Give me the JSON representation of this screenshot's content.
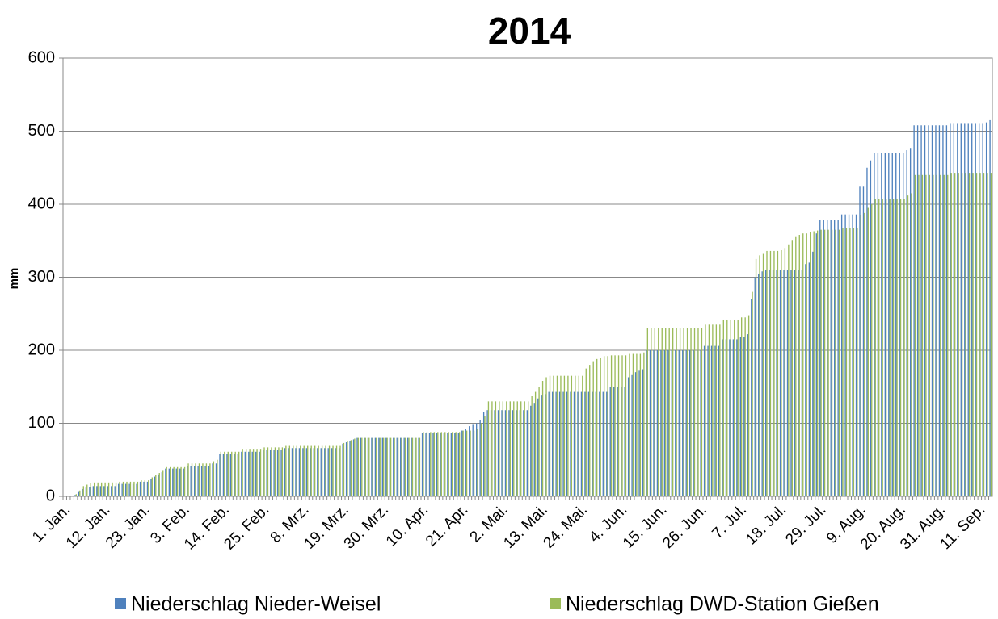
{
  "chart_data": {
    "type": "bar",
    "title": "2014",
    "y_label": "mm",
    "categories": [
      "1. Jan.",
      null,
      null,
      null,
      null,
      null,
      null,
      null,
      null,
      null,
      null,
      "12. Jan.",
      null,
      null,
      null,
      null,
      null,
      null,
      null,
      null,
      null,
      null,
      "23. Jan.",
      null,
      null,
      null,
      null,
      null,
      null,
      null,
      null,
      null,
      null,
      "3. Feb.",
      null,
      null,
      null,
      null,
      null,
      null,
      null,
      null,
      null,
      null,
      "14. Feb.",
      null,
      null,
      null,
      null,
      null,
      null,
      null,
      null,
      null,
      null,
      "25. Feb.",
      null,
      null,
      null,
      null,
      null,
      null,
      null,
      null,
      null,
      null,
      "8. Mrz.",
      null,
      null,
      null,
      null,
      null,
      null,
      null,
      null,
      null,
      null,
      "19. Mrz.",
      null,
      null,
      null,
      null,
      null,
      null,
      null,
      null,
      null,
      null,
      "30. Mrz.",
      null,
      null,
      null,
      null,
      null,
      null,
      null,
      null,
      null,
      null,
      "10. Apr.",
      null,
      null,
      null,
      null,
      null,
      null,
      null,
      null,
      null,
      null,
      "21. Apr.",
      null,
      null,
      null,
      null,
      null,
      null,
      null,
      null,
      null,
      null,
      "2. Mai.",
      null,
      null,
      null,
      null,
      null,
      null,
      null,
      null,
      null,
      null,
      "13. Mai.",
      null,
      null,
      null,
      null,
      null,
      null,
      null,
      null,
      null,
      null,
      "24. Mai.",
      null,
      null,
      null,
      null,
      null,
      null,
      null,
      null,
      null,
      null,
      "4. Jun.",
      null,
      null,
      null,
      null,
      null,
      null,
      null,
      null,
      null,
      null,
      "15. Jun.",
      null,
      null,
      null,
      null,
      null,
      null,
      null,
      null,
      null,
      null,
      "26. Jun.",
      null,
      null,
      null,
      null,
      null,
      null,
      null,
      null,
      null,
      null,
      "7. Jul.",
      null,
      null,
      null,
      null,
      null,
      null,
      null,
      null,
      null,
      null,
      "18. Jul.",
      null,
      null,
      null,
      null,
      null,
      null,
      null,
      null,
      null,
      null,
      "29. Jul.",
      null,
      null,
      null,
      null,
      null,
      null,
      null,
      null,
      null,
      null,
      "9. Aug.",
      null,
      null,
      null,
      null,
      null,
      null,
      null,
      null,
      null,
      null,
      "20. Aug.",
      null,
      null,
      null,
      null,
      null,
      null,
      null,
      null,
      null,
      null,
      "31. Aug.",
      null,
      null,
      null,
      null,
      null,
      null,
      null,
      null,
      null,
      null,
      "11. Sep.",
      null,
      null,
      null
    ],
    "series": [
      {
        "name": "Niederschlag Nieder-Weisel",
        "color": "#4f81bd",
        "values": [
          0,
          0,
          0,
          2,
          6,
          10,
          12,
          13,
          14,
          14,
          14,
          14,
          14,
          14,
          14,
          17,
          17,
          17,
          17,
          17,
          17,
          20,
          20,
          20,
          24,
          27,
          30,
          33,
          38,
          38,
          38,
          38,
          38,
          38,
          42,
          42,
          42,
          42,
          42,
          42,
          42,
          45,
          45,
          58,
          58,
          58,
          58,
          58,
          58,
          61,
          61,
          61,
          61,
          61,
          61,
          64,
          64,
          64,
          64,
          64,
          64,
          66,
          66,
          66,
          66,
          66,
          66,
          66,
          66,
          66,
          66,
          66,
          66,
          66,
          66,
          66,
          66,
          72,
          74,
          76,
          78,
          80,
          80,
          80,
          80,
          80,
          80,
          80,
          80,
          80,
          80,
          80,
          80,
          80,
          80,
          80,
          80,
          80,
          80,
          87,
          87,
          87,
          87,
          87,
          87,
          87,
          87,
          87,
          87,
          87,
          90,
          92,
          96,
          99,
          100,
          104,
          116,
          118,
          118,
          118,
          118,
          118,
          118,
          118,
          118,
          118,
          118,
          118,
          118,
          124,
          128,
          134,
          138,
          140,
          143,
          143,
          143,
          143,
          143,
          143,
          143,
          143,
          143,
          143,
          143,
          143,
          143,
          143,
          143,
          143,
          143,
          150,
          150,
          150,
          150,
          150,
          163,
          166,
          170,
          172,
          174,
          200,
          200,
          200,
          200,
          200,
          200,
          200,
          200,
          200,
          200,
          200,
          200,
          200,
          200,
          200,
          200,
          206,
          206,
          206,
          206,
          206,
          215,
          215,
          215,
          215,
          215,
          218,
          218,
          222,
          270,
          300,
          305,
          308,
          310,
          310,
          310,
          310,
          310,
          310,
          310,
          310,
          310,
          310,
          310,
          318,
          320,
          335,
          360,
          378,
          378,
          378,
          378,
          378,
          378,
          386,
          386,
          386,
          386,
          386,
          424,
          424,
          450,
          460,
          470,
          470,
          470,
          470,
          470,
          470,
          470,
          470,
          470,
          474,
          476,
          508,
          508,
          508,
          508,
          508,
          508,
          508,
          508,
          508,
          508,
          510,
          510,
          510,
          510,
          510,
          510,
          510,
          510,
          510,
          510,
          512,
          515
        ]
      },
      {
        "name": "Niederschlag DWD-Station Gießen",
        "color": "#9bbb59",
        "values": [
          0,
          0,
          0,
          3,
          8,
          14,
          16,
          18,
          19,
          19,
          19,
          19,
          19,
          19,
          19,
          20,
          20,
          20,
          20,
          20,
          20,
          22,
          22,
          22,
          26,
          29,
          32,
          36,
          40,
          40,
          40,
          40,
          40,
          40,
          45,
          45,
          45,
          45,
          45,
          45,
          45,
          48,
          50,
          61,
          61,
          61,
          61,
          61,
          61,
          65,
          65,
          65,
          65,
          65,
          65,
          67,
          67,
          67,
          67,
          67,
          67,
          69,
          69,
          69,
          69,
          69,
          69,
          69,
          69,
          69,
          69,
          69,
          69,
          69,
          69,
          69,
          69,
          73,
          75,
          77,
          79,
          80,
          80,
          80,
          80,
          80,
          80,
          80,
          80,
          80,
          80,
          80,
          80,
          80,
          80,
          80,
          80,
          80,
          80,
          88,
          88,
          88,
          88,
          88,
          88,
          88,
          88,
          88,
          88,
          88,
          90,
          90,
          90,
          90,
          92,
          100,
          110,
          130,
          130,
          130,
          130,
          130,
          130,
          130,
          130,
          130,
          130,
          130,
          130,
          137,
          143,
          150,
          158,
          163,
          165,
          165,
          165,
          165,
          165,
          165,
          165,
          165,
          165,
          165,
          175,
          180,
          185,
          188,
          190,
          192,
          192,
          193,
          193,
          193,
          193,
          193,
          195,
          195,
          195,
          195,
          197,
          230,
          230,
          230,
          230,
          230,
          230,
          230,
          230,
          230,
          230,
          230,
          230,
          230,
          230,
          230,
          230,
          235,
          235,
          235,
          235,
          235,
          242,
          242,
          242,
          242,
          242,
          245,
          245,
          248,
          280,
          325,
          330,
          332,
          336,
          336,
          336,
          336,
          337,
          340,
          345,
          350,
          355,
          358,
          360,
          360,
          362,
          363,
          364,
          365,
          365,
          365,
          365,
          365,
          365,
          367,
          367,
          367,
          367,
          367,
          385,
          388,
          395,
          400,
          407,
          407,
          407,
          407,
          407,
          407,
          407,
          407,
          407,
          412,
          415,
          440,
          440,
          440,
          440,
          440,
          440,
          440,
          440,
          440,
          440,
          443,
          443,
          443,
          443,
          443,
          443,
          443,
          443,
          443,
          443,
          443,
          443
        ]
      }
    ],
    "ylim": [
      0,
      600
    ],
    "yticks": [
      0,
      100,
      200,
      300,
      400,
      500,
      600
    ],
    "grid": true
  }
}
